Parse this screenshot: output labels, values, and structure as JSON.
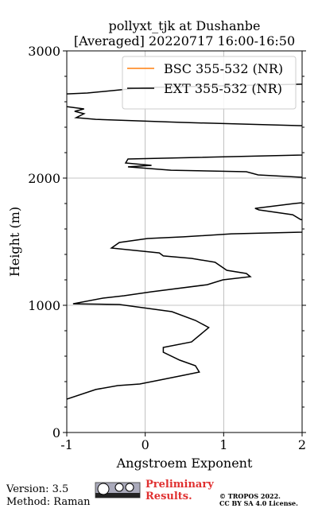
{
  "chart_data": {
    "type": "line",
    "orientation": "vertical-profile",
    "title": "pollyxt_tjk at Dushanbe",
    "subtitle": "[Averaged] 20220717 16:00-16:50",
    "x_label": "Angstroem Exponent",
    "y_label": "Height (m)",
    "xlim": [
      -1,
      2
    ],
    "xticks": [
      -1,
      0,
      1,
      2
    ],
    "ylim": [
      0,
      3000
    ],
    "yticks": [
      0,
      1000,
      2000,
      3000
    ],
    "yminorticks": [
      200,
      400,
      600,
      800,
      1200,
      1400,
      1600,
      1800,
      2200,
      2400,
      2600,
      2800
    ],
    "grid": true,
    "legend": "upper right",
    "y": [
      262,
      338,
      369,
      381,
      412,
      450,
      475,
      525,
      569,
      631,
      669,
      712,
      825,
      881,
      950,
      1006,
      1012,
      1056,
      1075,
      1106,
      1162,
      1200,
      1225,
      1250,
      1275,
      1338,
      1369,
      1388,
      1412,
      1450,
      1494,
      1525,
      1538,
      1562,
      1575,
      1625,
      1675,
      1712,
      1750,
      1762,
      1800,
      1806,
      1900,
      2006,
      2025,
      2050,
      2062,
      2088,
      2100,
      2119,
      2150,
      2181,
      2300,
      2412,
      2438,
      2462,
      2475,
      2506,
      2525,
      2544,
      2562,
      2610,
      2662,
      2669,
      2712,
      2738
    ],
    "series": [
      {
        "name": "BSC 355-532 (NR)",
        "color": "#ff7f0e",
        "values": [
          null,
          null,
          null,
          null,
          null,
          null,
          null,
          null,
          null,
          null,
          null,
          null,
          null,
          null,
          null,
          null,
          null,
          null,
          null,
          null,
          null,
          null,
          null,
          null,
          null,
          null,
          null,
          null,
          null,
          null,
          null,
          null,
          null,
          null,
          null,
          null,
          null,
          null,
          null,
          null,
          null,
          null,
          null,
          null,
          null,
          null,
          null,
          null,
          null,
          null,
          null,
          null,
          null,
          null,
          null,
          null,
          null,
          null,
          null,
          null,
          null,
          null,
          null,
          null,
          null,
          null
        ]
      },
      {
        "name": "EXT 355-532 (NR)",
        "color": "#000000",
        "values": [
          -1,
          -0.63,
          -0.35,
          -0.07,
          0.18,
          0.49,
          0.69,
          0.64,
          0.44,
          0.23,
          0.23,
          0.59,
          0.81,
          0.64,
          0.34,
          -0.33,
          -0.92,
          -0.54,
          -0.27,
          0.08,
          0.79,
          0.99,
          1.34,
          1.29,
          1.04,
          0.89,
          0.59,
          0.23,
          0.18,
          -0.43,
          -0.33,
          0.03,
          0.49,
          1.1,
          2.0,
          2.3,
          1.98,
          1.88,
          1.45,
          1.4,
          1.9,
          2.0,
          2.4,
          2.0,
          1.44,
          1.29,
          0.33,
          -0.22,
          0.08,
          -0.25,
          -0.22,
          2.0,
          2.5,
          2.0,
          0.44,
          -0.63,
          -0.88,
          -0.78,
          -0.9,
          -0.78,
          -1.0,
          -1.2,
          -1.0,
          -0.74,
          -0.02,
          2.0
        ]
      }
    ]
  },
  "footer": {
    "version": "Version: 3.5",
    "method": "Method: Raman",
    "status": "Preliminary Results.",
    "copyright": "© TROPOS 2022.",
    "license": "CC BY SA 4.0 License."
  }
}
